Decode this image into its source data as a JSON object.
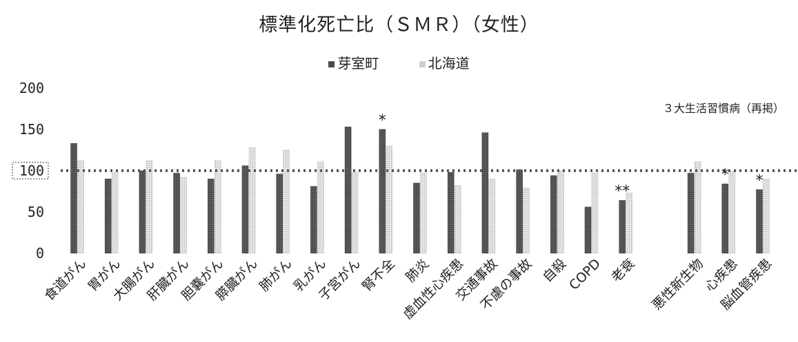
{
  "chart_data": {
    "type": "bar",
    "title": "標準化死亡比（ＳＭＲ）（女性）",
    "xlabel": "",
    "ylabel": "",
    "ylim": [
      0,
      200
    ],
    "yticks": [
      0,
      50,
      100,
      150,
      200
    ],
    "reference_line": 100,
    "legend_position": "top",
    "grid": false,
    "categories": [
      "食道がん",
      "胃がん",
      "大腸がん",
      "肝臓がん",
      "胆嚢がん",
      "膵臓がん",
      "肺がん",
      "乳がん",
      "子宮がん",
      "腎不全",
      "肺炎",
      "虚血性心疾患",
      "交通事故",
      "不慮の事故",
      "自殺",
      "COPD",
      "老衰",
      "",
      "悪性新生物",
      "心疾患",
      "脳血管疾患"
    ],
    "series": [
      {
        "name": "芽室町",
        "color": "#4a4a4a",
        "values": [
          133,
          90,
          100,
          97,
          90,
          106,
          96,
          81,
          153,
          150,
          85,
          98,
          146,
          101,
          94,
          56,
          64,
          null,
          97,
          84,
          77
        ]
      },
      {
        "name": "北海道",
        "color": "#cfcfcf",
        "values": [
          112,
          98,
          112,
          92,
          112,
          128,
          125,
          111,
          98,
          130,
          97,
          82,
          90,
          79,
          100,
          97,
          73,
          null,
          111,
          99,
          90
        ]
      }
    ],
    "significance_marks": [
      "",
      "",
      "",
      "",
      "",
      "",
      "",
      "",
      "",
      "*",
      "",
      "",
      "",
      "",
      "",
      "",
      "**",
      "",
      "",
      "*",
      "*"
    ],
    "annotation": "３大生活習慣病（再掲）"
  }
}
